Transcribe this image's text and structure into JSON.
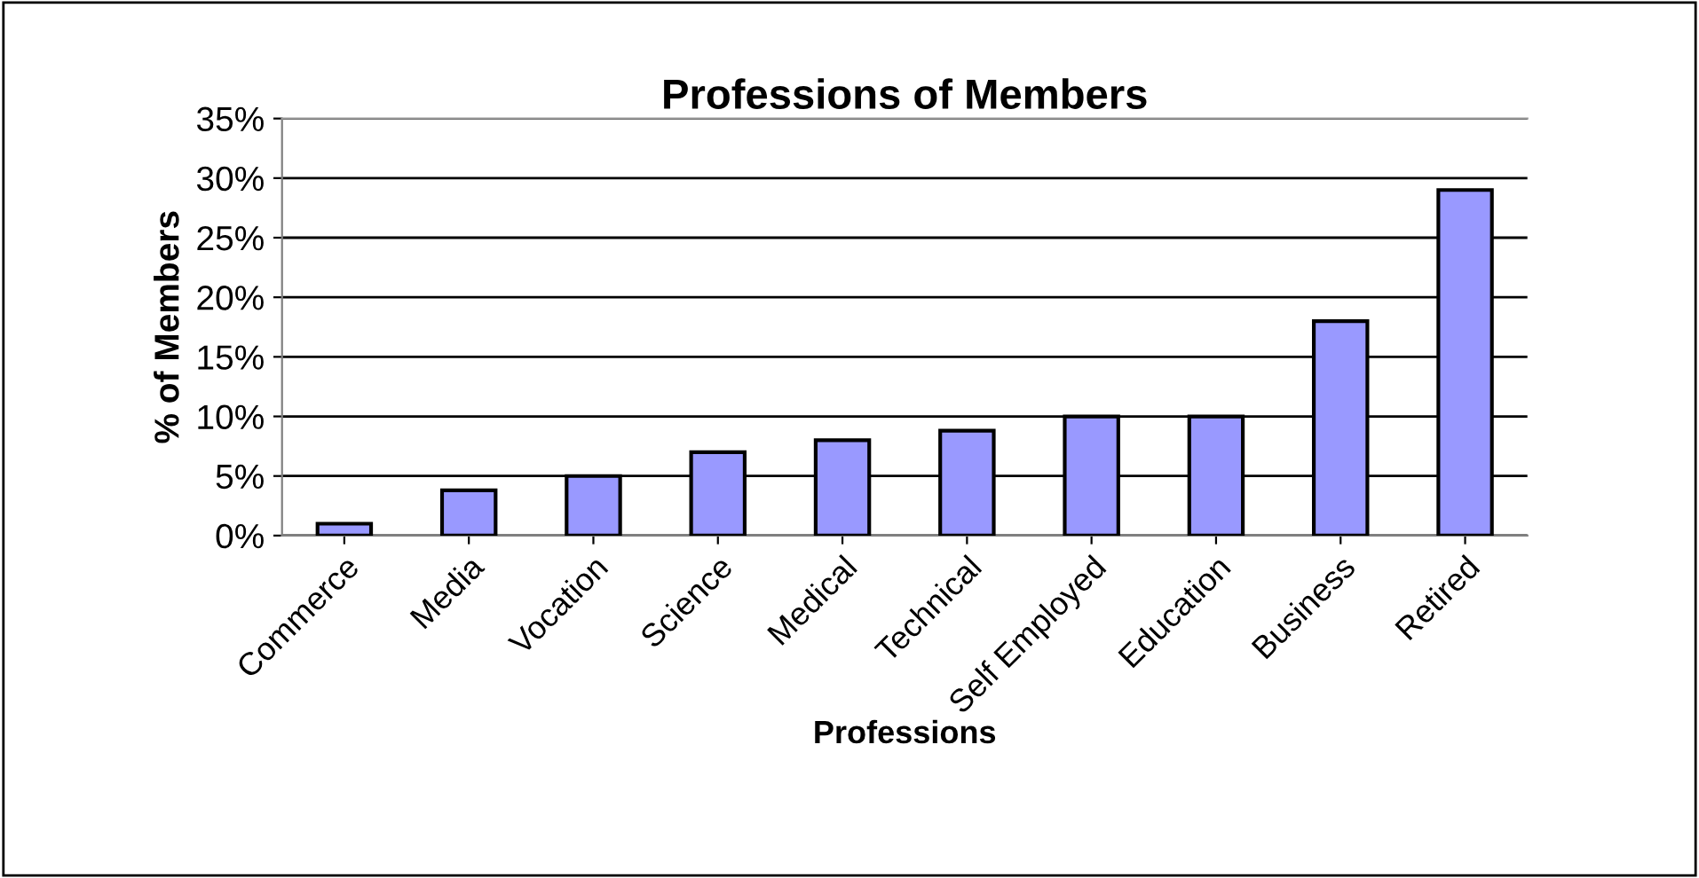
{
  "chart_data": {
    "type": "bar",
    "title": "Professions of Members",
    "xlabel": "Professions",
    "ylabel": "% of Members",
    "categories": [
      "Commerce",
      "Media",
      "Vocation",
      "Science",
      "Medical",
      "Technical",
      "Self Employed",
      "Education",
      "Business",
      "Retired"
    ],
    "values": [
      1,
      3.8,
      5,
      7,
      8,
      8.8,
      10,
      10,
      18,
      29
    ],
    "color": "#9999ff",
    "ylim": [
      0,
      35
    ],
    "yticks": [
      {
        "value": 0,
        "label": "0%"
      },
      {
        "value": 5,
        "label": "5%"
      },
      {
        "value": 10,
        "label": "10%"
      },
      {
        "value": 15,
        "label": "15%"
      },
      {
        "value": 20,
        "label": "20%"
      },
      {
        "value": 25,
        "label": "25%"
      },
      {
        "value": 30,
        "label": "30%"
      },
      {
        "value": 35,
        "label": "35%"
      }
    ],
    "grid": "y"
  }
}
